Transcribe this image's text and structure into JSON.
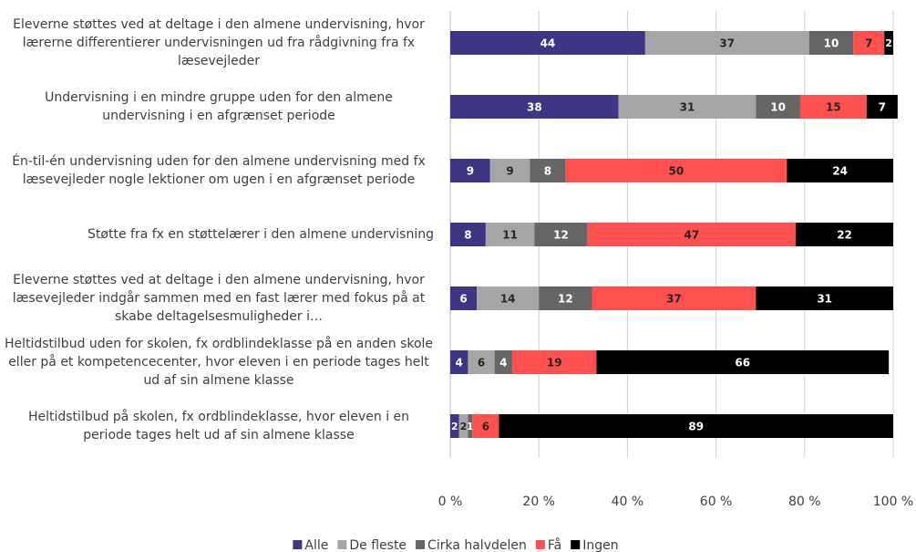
{
  "chart_data": {
    "type": "stacked-bar-horizontal",
    "categories": [
      "Eleverne støttes ved at deltage i den almene undervisning, hvor lærerne differentierer undervisningen ud fra rådgivning fra fx læsevejleder",
      "Undervisning i en mindre gruppe uden for den almene undervisning i en afgrænset periode",
      "Én-til-én undervisning uden for den almene undervisning med fx læsevejleder nogle lektioner om ugen i en afgrænset periode",
      "Støtte fra fx en støttelærer i den almene undervisning",
      "Eleverne støttes ved at deltage i den almene undervisning, hvor læsevejleder indgår sammen med en fast lærer med fokus på at skabe deltagelsesmuligheder i…",
      "Heltidstilbud uden for skolen, fx ordblindeklasse på en anden skole eller på et kompetencecenter, hvor eleven i en periode tages helt ud af sin almene klasse",
      "Heltidstilbud på skolen, fx ordblindeklasse, hvor eleven i en periode tages helt ud af sin almene klasse"
    ],
    "series": [
      {
        "name": "Alle",
        "color": "#3f3585",
        "values": [
          44,
          38,
          9,
          8,
          6,
          4,
          2
        ]
      },
      {
        "name": "De fleste",
        "color": "#a6a6a6",
        "values": [
          37,
          31,
          9,
          11,
          14,
          6,
          2
        ]
      },
      {
        "name": "Cirka halvdelen",
        "color": "#666666",
        "values": [
          10,
          10,
          8,
          12,
          12,
          4,
          1
        ]
      },
      {
        "name": "Få",
        "color": "#ff5050",
        "values": [
          7,
          15,
          50,
          47,
          37,
          19,
          6
        ]
      },
      {
        "name": "Ingen",
        "color": "#000000",
        "values": [
          2,
          7,
          24,
          22,
          31,
          66,
          89
        ]
      }
    ],
    "xlim": [
      0,
      100
    ],
    "xticks": [
      {
        "value": 0,
        "label": "0 %"
      },
      {
        "value": 20,
        "label": "20 %"
      },
      {
        "value": 40,
        "label": "40 %"
      },
      {
        "value": 60,
        "label": "60 %"
      },
      {
        "value": 80,
        "label": "80 %"
      },
      {
        "value": 100,
        "label": "100 %"
      }
    ],
    "grid": true,
    "legend": "bottom"
  }
}
